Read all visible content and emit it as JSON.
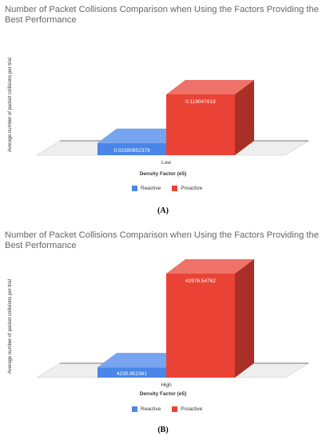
{
  "colors": {
    "reactive": "#4a86e8",
    "proactive": "#ea4335"
  },
  "chart_data": [
    {
      "type": "bar",
      "title": "Number of Packet Collisions Comparison when Using the Factors Providing the Best Performance",
      "xlabel": "Density Factor (e5)",
      "ylabel": "Average number of packet collisions per trial",
      "categories": [
        "Low"
      ],
      "series": [
        {
          "name": "Reactive",
          "values": [
            0.02380952379
          ],
          "label_text": "0.02380952379"
        },
        {
          "name": "Proactive",
          "values": [
            0.119047619
          ],
          "label_text": "0.119047619"
        }
      ],
      "ylim": [
        0,
        0.119047619
      ],
      "legend_position": "bottom",
      "caption": "(A)"
    },
    {
      "type": "bar",
      "title": "Number of Packet Collisions Comparison when Using the Factors Providing the Best Performance",
      "xlabel": "Density Factor (e5)",
      "ylabel": "Average number of packet collisions per trial",
      "categories": [
        "High"
      ],
      "series": [
        {
          "name": "Reactive",
          "values": [
            4235.952381
          ],
          "label_text": "4235.952381"
        },
        {
          "name": "Proactive",
          "values": [
            42976.54762
          ],
          "label_text": "42976.54762"
        }
      ],
      "ylim": [
        0,
        42976.54762
      ],
      "legend_position": "bottom",
      "caption": "(B)"
    }
  ]
}
